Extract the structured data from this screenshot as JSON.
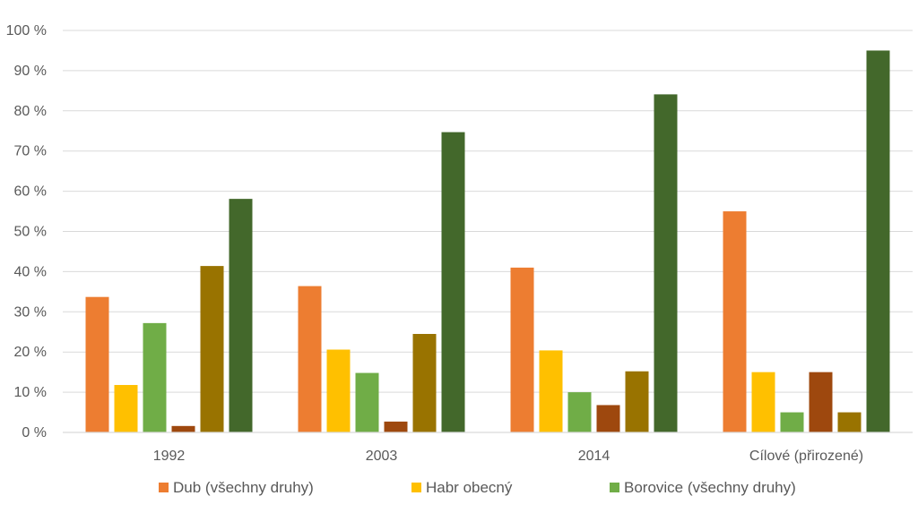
{
  "chart_data": {
    "type": "bar",
    "title": "",
    "xlabel": "",
    "ylabel": "",
    "ylim": [
      0,
      100
    ],
    "yticks": [
      0,
      10,
      20,
      30,
      40,
      50,
      60,
      70,
      80,
      90,
      100
    ],
    "ytick_suffix": " %",
    "grid": true,
    "legend_position": "bottom",
    "categories": [
      "1992",
      "2003",
      "2014",
      "Cílové (přirozené)"
    ],
    "series": [
      {
        "name": "Dub (všechny druhy)",
        "color": "#ED7D31",
        "values": [
          33.7,
          36.4,
          41.0,
          55.0
        ],
        "in_legend": true
      },
      {
        "name": "Habr obecný",
        "color": "#FFC000",
        "values": [
          11.8,
          20.6,
          20.4,
          15.0
        ],
        "in_legend": true
      },
      {
        "name": "Borovice (všechny druhy)",
        "color": "#70AD47",
        "values": [
          27.2,
          14.8,
          10.0,
          5.0
        ],
        "in_legend": true
      },
      {
        "name": "",
        "color": "#9E480E",
        "values": [
          1.6,
          2.7,
          6.8,
          15.0
        ],
        "in_legend": false
      },
      {
        "name": "",
        "color": "#997300",
        "values": [
          41.4,
          24.5,
          15.2,
          5.0
        ],
        "in_legend": false
      },
      {
        "name": "",
        "color": "#43682B",
        "values": [
          58.1,
          74.7,
          84.1,
          95.0
        ],
        "in_legend": false
      }
    ]
  }
}
